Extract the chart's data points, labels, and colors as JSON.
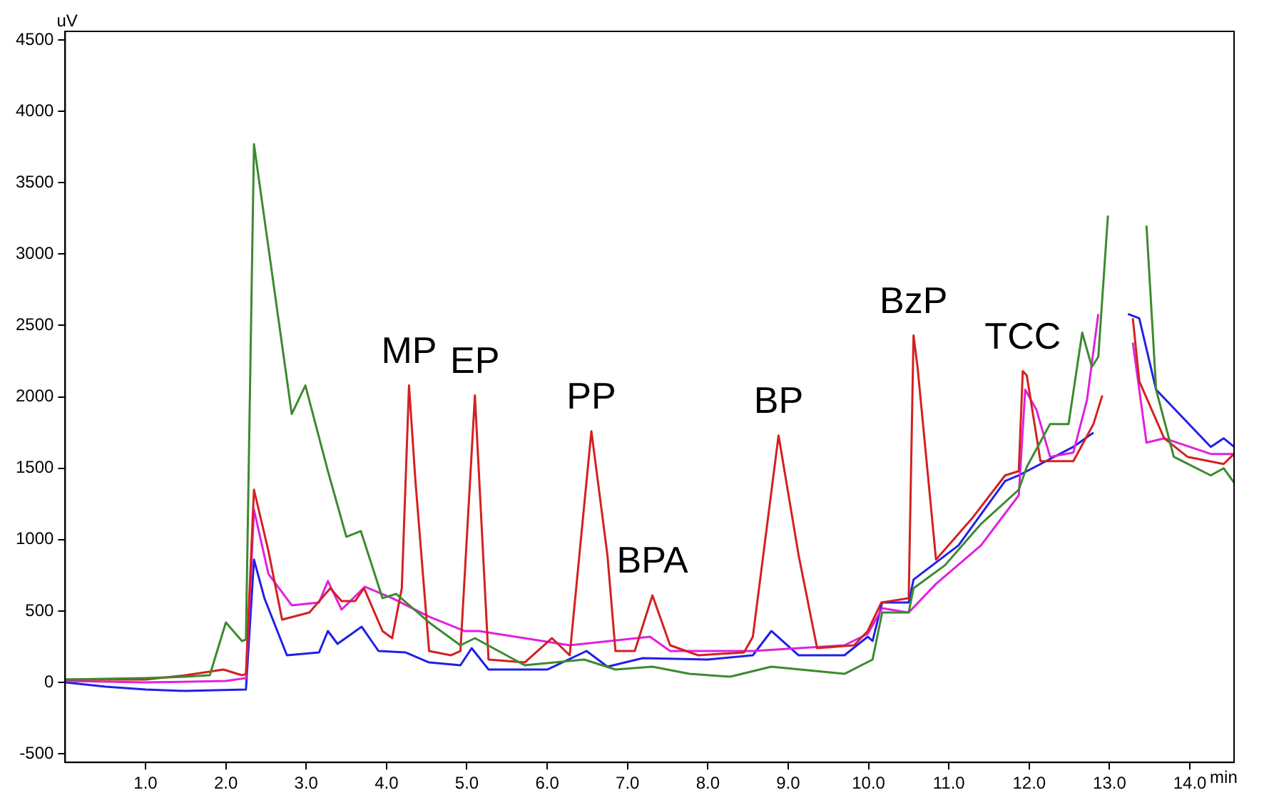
{
  "chart_data": {
    "type": "line",
    "xlabel": "min",
    "ylabel": "uV",
    "xlim": [
      0,
      14.55
    ],
    "ylim": [
      -560,
      4560
    ],
    "xticks": [
      {
        "value": 1,
        "label": "1.0"
      },
      {
        "value": 2,
        "label": "2.0"
      },
      {
        "value": 3,
        "label": "3.0"
      },
      {
        "value": 4,
        "label": "4.0"
      },
      {
        "value": 5,
        "label": "5.0"
      },
      {
        "value": 6,
        "label": "6.0"
      },
      {
        "value": 7,
        "label": "7.0"
      },
      {
        "value": 8,
        "label": "8.0"
      },
      {
        "value": 9,
        "label": "9.0"
      },
      {
        "value": 10,
        "label": "10.0"
      },
      {
        "value": 11,
        "label": "11.0"
      },
      {
        "value": 12,
        "label": "12.0"
      },
      {
        "value": 13,
        "label": "13.0"
      },
      {
        "value": 14,
        "label": "14.0"
      }
    ],
    "yticks": [
      -500,
      0,
      500,
      1000,
      1500,
      2000,
      2500,
      3000,
      3500,
      4000,
      4500
    ],
    "grid": false,
    "legend": false,
    "marker": "none",
    "line_style": "solid",
    "series": [
      {
        "color": "#3c8a2e",
        "x": [
          0,
          1.0,
          1.5,
          1.8,
          2.0,
          2.2,
          2.25,
          2.35,
          2.82,
          2.99,
          3.27,
          3.5,
          3.68,
          3.95,
          4.12,
          4.53,
          4.92,
          5.1,
          5.72,
          6.46,
          6.85,
          7.31,
          7.77,
          8.28,
          8.79,
          9.7,
          10.05,
          10.17,
          10.5,
          10.56,
          10.95,
          11.4,
          11.87,
          11.97,
          12.26,
          12.49,
          12.66,
          12.78,
          12.86,
          12.98,
          13.0,
          13.42,
          13.46,
          13.58,
          13.8,
          14.26,
          14.42,
          14.55
        ],
        "values": [
          20,
          30,
          40,
          50,
          420,
          290,
          300,
          3770,
          1880,
          2080,
          1480,
          1020,
          1060,
          590,
          620,
          420,
          260,
          310,
          120,
          160,
          90,
          110,
          60,
          40,
          110,
          60,
          160,
          490,
          490,
          660,
          820,
          1110,
          1350,
          1510,
          1810,
          1810,
          2450,
          2210,
          2280,
          3270,
          null,
          null,
          3200,
          2050,
          1580,
          1450,
          1500,
          1400
        ]
      },
      {
        "color": "#d42020",
        "x": [
          0,
          1.0,
          1.5,
          1.97,
          2.2,
          2.25,
          2.35,
          2.53,
          2.7,
          3.04,
          3.3,
          3.44,
          3.61,
          3.72,
          3.95,
          4.07,
          4.19,
          4.28,
          4.36,
          4.53,
          4.8,
          4.92,
          5.1,
          5.27,
          5.72,
          6.06,
          6.28,
          6.55,
          6.75,
          6.85,
          7.09,
          7.31,
          7.53,
          7.88,
          8.45,
          8.56,
          8.88,
          9.13,
          9.36,
          9.82,
          9.99,
          10.16,
          10.5,
          10.56,
          10.61,
          10.84,
          11.29,
          11.7,
          11.87,
          11.92,
          11.97,
          12.14,
          12.55,
          12.8,
          12.91,
          12.96,
          13.25,
          13.29,
          13.37,
          13.68,
          13.97,
          14.42,
          14.55
        ],
        "values": [
          20,
          20,
          50,
          90,
          50,
          60,
          1350,
          920,
          440,
          490,
          660,
          570,
          570,
          660,
          360,
          310,
          660,
          2080,
          1410,
          220,
          190,
          220,
          2010,
          160,
          140,
          310,
          190,
          1760,
          890,
          220,
          220,
          610,
          260,
          190,
          210,
          320,
          1730,
          890,
          240,
          260,
          360,
          560,
          590,
          2430,
          2210,
          860,
          1150,
          1450,
          1480,
          2180,
          2150,
          1550,
          1550,
          1810,
          2010,
          null,
          null,
          2550,
          2110,
          1710,
          1580,
          1530,
          1600
        ]
      },
      {
        "color": "#e020e0",
        "x": [
          0,
          1.0,
          2.0,
          2.25,
          2.35,
          2.53,
          2.82,
          3.16,
          3.27,
          3.44,
          3.73,
          4.07,
          4.53,
          4.97,
          5.15,
          6.28,
          7.28,
          7.53,
          8.56,
          9.7,
          9.99,
          10.17,
          10.5,
          10.84,
          11.4,
          11.87,
          11.95,
          12.09,
          12.26,
          12.55,
          12.72,
          12.86,
          12.91,
          13.18,
          13.29,
          13.46,
          13.68,
          14.26,
          14.55
        ],
        "values": [
          10,
          0,
          10,
          30,
          1210,
          760,
          540,
          560,
          710,
          510,
          670,
          590,
          460,
          360,
          360,
          260,
          320,
          220,
          220,
          260,
          340,
          520,
          490,
          690,
          960,
          1310,
          2050,
          1910,
          1580,
          1610,
          1980,
          2580,
          null,
          null,
          2380,
          1680,
          1710,
          1600,
          1600
        ]
      },
      {
        "color": "#2020e8",
        "x": [
          0,
          0.5,
          1.0,
          1.5,
          2.25,
          2.35,
          2.48,
          2.76,
          3.16,
          3.27,
          3.39,
          3.69,
          3.9,
          4.24,
          4.53,
          4.92,
          5.06,
          5.27,
          6.0,
          6.49,
          6.75,
          7.19,
          8.0,
          8.56,
          8.79,
          9.13,
          9.7,
          9.99,
          10.05,
          10.17,
          10.5,
          10.56,
          11.12,
          11.7,
          11.87,
          12.55,
          12.8,
          12.91,
          13.16,
          13.23,
          13.37,
          13.58,
          14.26,
          14.42,
          14.55
        ],
        "values": [
          0,
          -30,
          -50,
          -60,
          -50,
          860,
          590,
          190,
          210,
          360,
          270,
          390,
          220,
          210,
          140,
          120,
          240,
          90,
          90,
          220,
          110,
          170,
          160,
          190,
          360,
          190,
          190,
          320,
          290,
          560,
          560,
          720,
          960,
          1410,
          1450,
          1650,
          1750,
          null,
          null,
          2580,
          2550,
          2050,
          1650,
          1710,
          1650
        ]
      }
    ],
    "annotations": [
      {
        "text": "MP",
        "x": 4.28,
        "y": 2080
      },
      {
        "text": "EP",
        "x": 5.1,
        "y": 2010
      },
      {
        "text": "PP",
        "x": 6.55,
        "y": 1760
      },
      {
        "text": "BPA",
        "x": 7.31,
        "y": 610
      },
      {
        "text": "BP",
        "x": 8.88,
        "y": 1730
      },
      {
        "text": "BzP",
        "x": 10.56,
        "y": 2430
      },
      {
        "text": "TCC",
        "x": 11.92,
        "y": 2180
      }
    ]
  }
}
